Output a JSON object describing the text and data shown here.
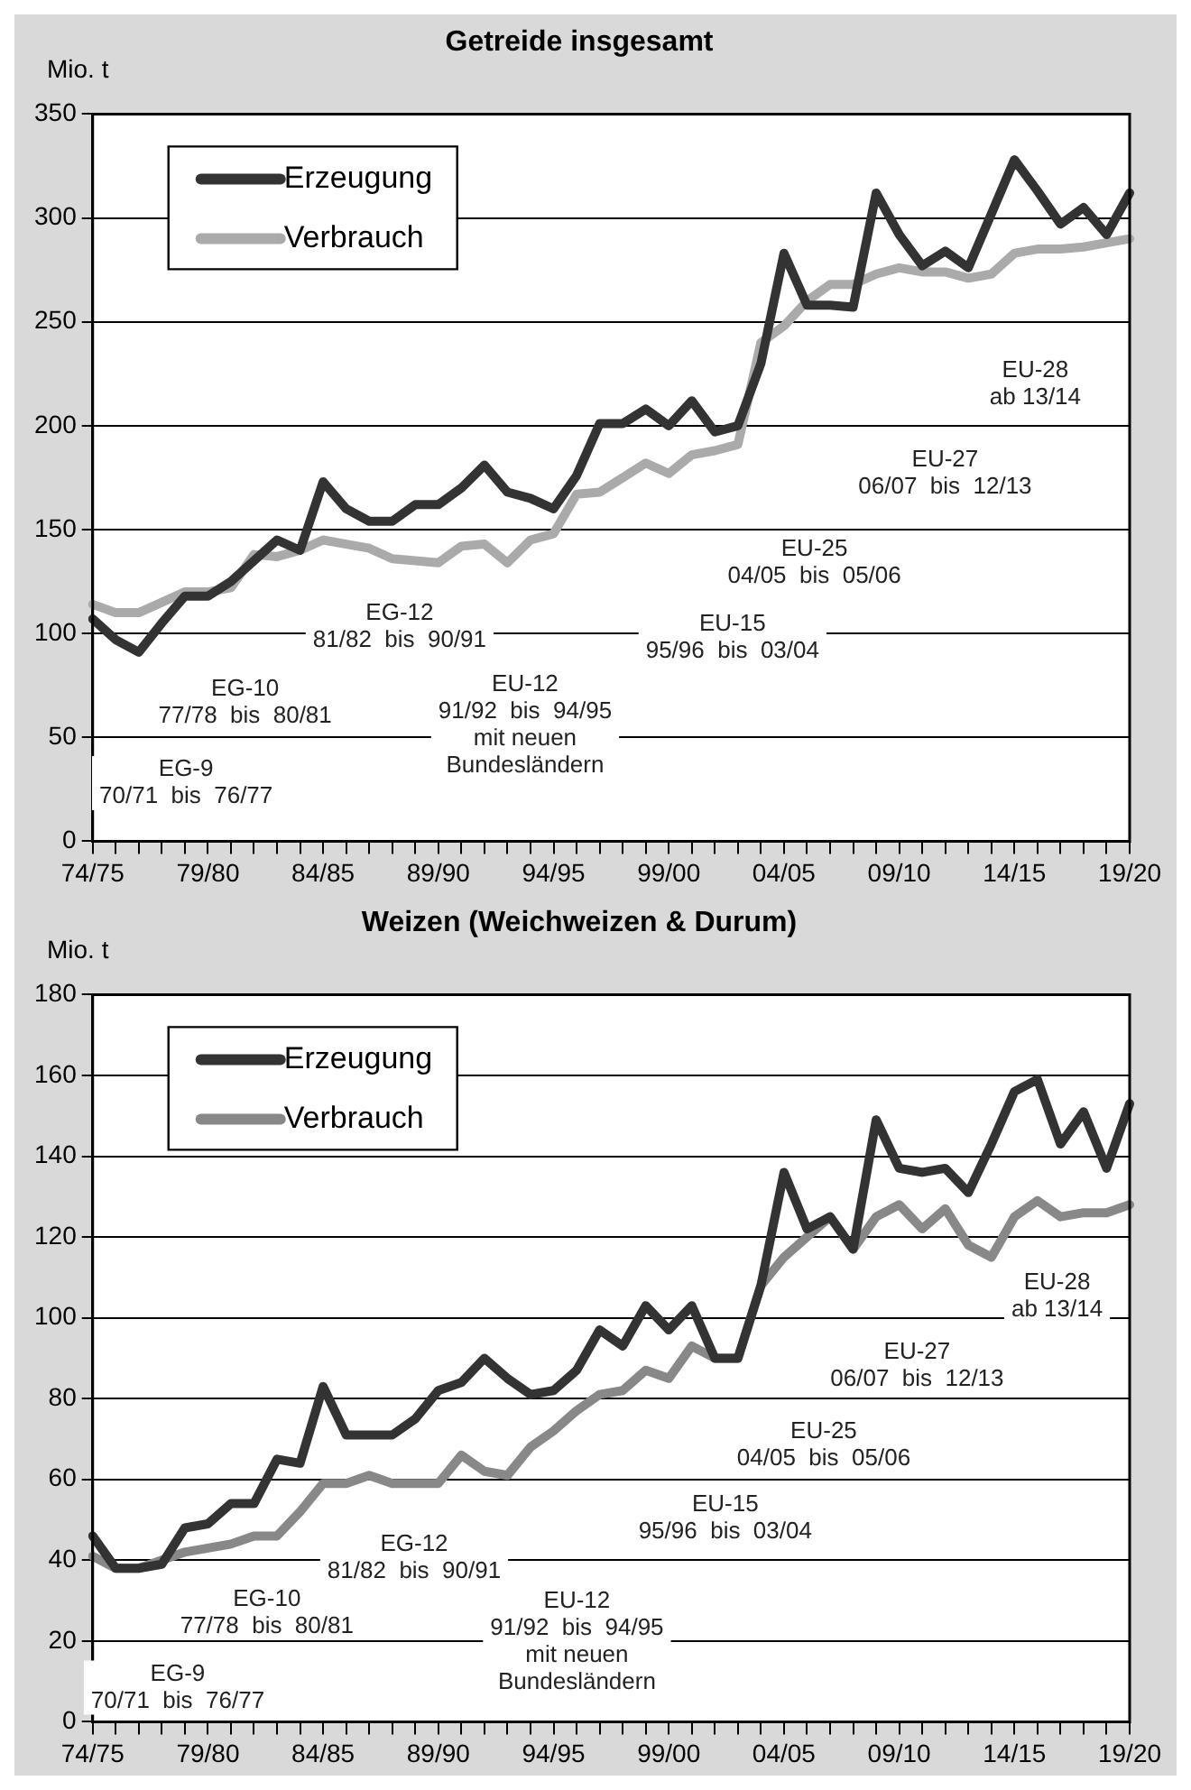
{
  "chart_data": [
    {
      "type": "line",
      "title": "Getreide insgesamt",
      "ylabel": "Mio. t",
      "categories": [
        "74/75",
        null,
        null,
        null,
        null,
        "79/80",
        null,
        null,
        null,
        null,
        "84/85",
        null,
        null,
        null,
        null,
        "89/90",
        null,
        null,
        null,
        null,
        "94/95",
        null,
        null,
        null,
        null,
        "99/00",
        null,
        null,
        null,
        null,
        "04/05",
        null,
        null,
        null,
        null,
        "09/10",
        null,
        null,
        null,
        null,
        "14/15",
        null,
        null,
        null,
        null,
        "19/20"
      ],
      "series": [
        {
          "name": "Erzeugung",
          "color": "#333333",
          "values": [
            107,
            97,
            91,
            105,
            118,
            118,
            125,
            135,
            145,
            140,
            173,
            160,
            154,
            154,
            162,
            162,
            170,
            181,
            168,
            165,
            160,
            176,
            201,
            201,
            208,
            200,
            212,
            197,
            200,
            230,
            283,
            258,
            258,
            257,
            312,
            292,
            277,
            284,
            276,
            302,
            328,
            313,
            297,
            305,
            292,
            312
          ]
        },
        {
          "name": "Verbrauch",
          "color": "#aaaaaa",
          "values": [
            114,
            110,
            110,
            115,
            120,
            120,
            122,
            138,
            137,
            140,
            145,
            143,
            141,
            136,
            135,
            134,
            142,
            143,
            134,
            145,
            148,
            167,
            168,
            175,
            182,
            177,
            186,
            188,
            191,
            240,
            248,
            260,
            268,
            268,
            273,
            276,
            274,
            274,
            271,
            273,
            283,
            285,
            285,
            286,
            288,
            290
          ]
        }
      ],
      "ylim": [
        0,
        350
      ],
      "yticks": [
        0,
        50,
        100,
        150,
        200,
        250,
        300,
        350
      ],
      "grid": "y",
      "legend": "top left",
      "line_style": "solid",
      "marker": "none",
      "annotations": [
        "EG-9\n70/71  bis  76/77",
        "EG-10\n77/78  bis  80/81",
        "EG-12\n81/82  bis  90/91",
        "EU-12\n91/92  bis  94/95\nmit neuen\nBundesländern",
        "EU-15\n95/96  bis  03/04",
        "EU-25\n04/05  bis  05/06",
        "EU-27\n06/07  bis  12/13",
        "EU-28\nab 13/14"
      ]
    },
    {
      "type": "line",
      "title": "Weizen (Weichweizen & Durum)",
      "ylabel": "Mio. t",
      "categories": [
        "74/75",
        null,
        null,
        null,
        null,
        "79/80",
        null,
        null,
        null,
        null,
        "84/85",
        null,
        null,
        null,
        null,
        "89/90",
        null,
        null,
        null,
        null,
        "94/95",
        null,
        null,
        null,
        null,
        "99/00",
        null,
        null,
        null,
        null,
        "04/05",
        null,
        null,
        null,
        null,
        "09/10",
        null,
        null,
        null,
        null,
        "14/15",
        null,
        null,
        null,
        null,
        "19/20"
      ],
      "series": [
        {
          "name": "Erzeugung",
          "color": "#333333",
          "values": [
            46,
            38,
            38,
            39,
            48,
            49,
            54,
            54,
            65,
            64,
            83,
            71,
            71,
            71,
            75,
            82,
            84,
            90,
            85,
            81,
            82,
            87,
            97,
            93,
            103,
            97,
            103,
            90,
            90,
            108,
            136,
            122,
            125,
            117,
            149,
            137,
            136,
            137,
            131,
            143,
            156,
            159,
            143,
            151,
            137,
            153
          ]
        },
        {
          "name": "Verbrauch",
          "color": "#888888",
          "values": [
            41,
            38,
            38,
            40,
            42,
            43,
            44,
            46,
            46,
            52,
            59,
            59,
            61,
            59,
            59,
            59,
            66,
            62,
            61,
            68,
            72,
            77,
            81,
            82,
            87,
            85,
            93,
            90,
            90,
            108,
            115,
            120,
            125,
            117,
            125,
            128,
            122,
            127,
            118,
            115,
            125,
            129,
            125,
            126,
            126,
            128
          ]
        }
      ],
      "ylim": [
        0,
        180
      ],
      "yticks": [
        0,
        20,
        40,
        60,
        80,
        100,
        120,
        140,
        160,
        180
      ],
      "grid": "y",
      "legend": "top left",
      "line_style": "solid",
      "marker": "none",
      "annotations": [
        "EG-9\n70/71  bis  76/77",
        "EG-10\n77/78  bis  80/81",
        "EG-12\n81/82  bis  90/91",
        "EU-12\n91/92  bis  94/95\nmit neuen\nBundesländern",
        "EU-15\n95/96  bis  03/04",
        "EU-25\n04/05  bis  05/06",
        "EU-27\n06/07  bis  12/13",
        "EU-28\nab 13/14"
      ]
    }
  ]
}
